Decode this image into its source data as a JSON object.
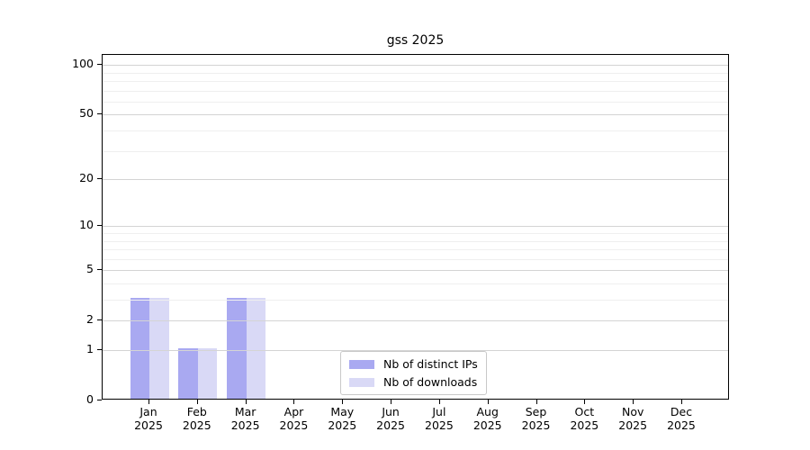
{
  "title": "gss 2025",
  "legend": {
    "items": [
      {
        "label": "Nb of distinct IPs",
        "color": "#a9a9f1"
      },
      {
        "label": "Nb of downloads",
        "color": "#d9d9f6"
      }
    ]
  },
  "chart_data": {
    "type": "bar",
    "title": "gss 2025",
    "categories": [
      "Jan",
      "Feb",
      "Mar",
      "Apr",
      "May",
      "Jun",
      "Jul",
      "Aug",
      "Sep",
      "Oct",
      "Nov",
      "Dec"
    ],
    "year_label": "2025",
    "series": [
      {
        "name": "Nb of distinct IPs",
        "color": "#a9a9f1",
        "values": [
          3,
          1,
          3,
          0,
          0,
          0,
          0,
          0,
          0,
          0,
          0,
          0
        ]
      },
      {
        "name": "Nb of downloads",
        "color": "#d9d9f6",
        "values": [
          3,
          1,
          3,
          0,
          0,
          0,
          0,
          0,
          0,
          0,
          0,
          0
        ]
      }
    ],
    "yscale": "log1p",
    "ylim": [
      0,
      115
    ],
    "y_major_ticks": [
      0,
      1,
      2,
      5,
      10,
      20,
      50,
      100
    ],
    "y_minor_ticks": [
      3,
      4,
      6,
      7,
      8,
      9,
      30,
      40,
      60,
      70,
      80,
      90
    ],
    "grid": true,
    "grid_over_bars": true,
    "legend_position": "bottom-center",
    "colors": {
      "grid_major": "#d4d4d4",
      "grid_minor": "#efefef",
      "axis": "#000000",
      "background": "#ffffff"
    }
  }
}
